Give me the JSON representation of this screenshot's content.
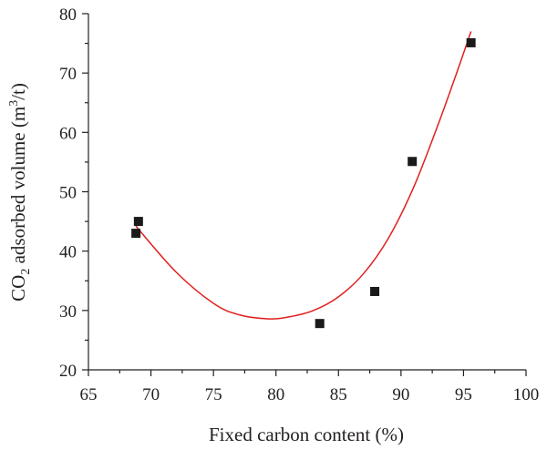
{
  "chart_data": {
    "type": "scatter",
    "xlabel": "Fixed carbon content (%)",
    "ylabel": {
      "prefix": "CO",
      "prefix_sub": "2",
      "middle": " adsorbed volume (m",
      "middle_sup": "3",
      "suffix": "/t)"
    },
    "xlim": [
      65,
      100
    ],
    "ylim": [
      20,
      80
    ],
    "x_ticks": [
      "65",
      "70",
      "75",
      "80",
      "85",
      "90",
      "95",
      "100"
    ],
    "y_ticks": [
      "20",
      "30",
      "40",
      "50",
      "60",
      "70",
      "80"
    ],
    "grid": false,
    "legend": "none",
    "series": [
      {
        "marker": "square",
        "color": "#1a1a1a",
        "points": [
          {
            "x": 68.8,
            "y": 43.0
          },
          {
            "x": 69.0,
            "y": 45.0
          },
          {
            "x": 83.5,
            "y": 27.8
          },
          {
            "x": 87.9,
            "y": 33.2
          },
          {
            "x": 90.9,
            "y": 55.1
          },
          {
            "x": 95.6,
            "y": 75.1
          }
        ]
      }
    ],
    "fit_curve": {
      "color": "#e0201f",
      "x_range": [
        68.8,
        95.6
      ],
      "points": [
        {
          "x": 68.8,
          "y": 44.2
        },
        {
          "x": 72.0,
          "y": 36.5
        },
        {
          "x": 75.0,
          "y": 31.2
        },
        {
          "x": 77.0,
          "y": 29.3
        },
        {
          "x": 79.3,
          "y": 28.6
        },
        {
          "x": 81.0,
          "y": 28.9
        },
        {
          "x": 83.0,
          "y": 30.0
        },
        {
          "x": 85.0,
          "y": 32.3
        },
        {
          "x": 87.0,
          "y": 36.2
        },
        {
          "x": 89.0,
          "y": 42.2
        },
        {
          "x": 91.0,
          "y": 50.7
        },
        {
          "x": 93.0,
          "y": 61.5
        },
        {
          "x": 94.5,
          "y": 70.3
        },
        {
          "x": 95.6,
          "y": 77.0
        }
      ]
    }
  }
}
